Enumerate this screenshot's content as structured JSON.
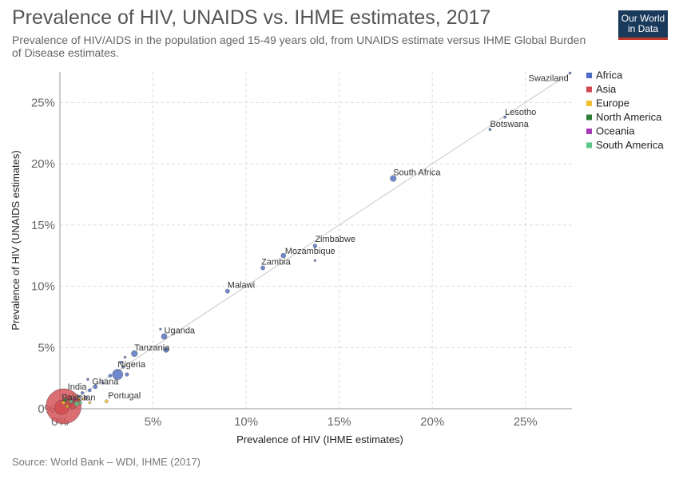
{
  "header": {
    "title": "Prevalence of HIV, UNAIDS vs. IHME estimates, 2017",
    "subtitle": "Prevalence of HIV/AIDS in the population aged 15-49 years old, from UNAIDS estimate versus IHME Global Burden of Disease estimates.",
    "logo_line1": "Our World",
    "logo_line2": "in Data"
  },
  "footer": {
    "source": "Source: World Bank – WDI, IHME (2017)"
  },
  "chart_data": {
    "type": "scatter",
    "title": "Prevalence of HIV, UNAIDS vs. IHME estimates, 2017",
    "xlabel": "Prevalence of HIV (IHME estimates)",
    "ylabel": "Prevalence of HIV (UNAIDS estimates)",
    "xlim": [
      0,
      27.5
    ],
    "ylim": [
      0,
      27.5
    ],
    "x_ticks": [
      0,
      5,
      10,
      15,
      20,
      25
    ],
    "y_ticks": [
      0,
      5,
      10,
      15,
      20,
      25
    ],
    "x_tick_labels": [
      "0%",
      "5%",
      "10%",
      "15%",
      "20%",
      "25%"
    ],
    "y_tick_labels": [
      "0%",
      "5%",
      "10%",
      "15%",
      "20%",
      "25%"
    ],
    "grid": true,
    "reference_line": "y = x",
    "legend_position": "right",
    "legend": [
      {
        "name": "Africa",
        "color": "#4c6bc2"
      },
      {
        "name": "Asia",
        "color": "#d24a4f"
      },
      {
        "name": "Europe",
        "color": "#f2c030"
      },
      {
        "name": "North America",
        "color": "#2f7d3a"
      },
      {
        "name": "Oceania",
        "color": "#a53ab5"
      },
      {
        "name": "South America",
        "color": "#5fc48a"
      }
    ],
    "points": [
      {
        "label": "Swaziland",
        "x": 27.4,
        "y": 27.4,
        "region": "Africa",
        "size": 1.5
      },
      {
        "label": "Lesotho",
        "x": 23.9,
        "y": 23.8,
        "region": "Africa",
        "size": 1.6
      },
      {
        "label": "Botswana",
        "x": 23.1,
        "y": 22.8,
        "region": "Africa",
        "size": 1.6
      },
      {
        "label": "South Africa",
        "x": 17.9,
        "y": 18.8,
        "region": "Africa",
        "size": 3.8
      },
      {
        "label": "Zimbabwe",
        "x": 13.7,
        "y": 13.3,
        "region": "Africa",
        "size": 2.4
      },
      {
        "label": "Mozambique",
        "x": 12.0,
        "y": 12.5,
        "region": "Africa",
        "size": 3.0
      },
      {
        "label": "",
        "x": 13.7,
        "y": 12.1,
        "region": "Africa",
        "size": 1.3
      },
      {
        "label": "Zambia",
        "x": 10.9,
        "y": 11.5,
        "region": "Africa",
        "size": 2.6
      },
      {
        "label": "Malawi",
        "x": 9.0,
        "y": 9.6,
        "region": "Africa",
        "size": 2.6
      },
      {
        "label": "",
        "x": 5.4,
        "y": 6.5,
        "region": "Africa",
        "size": 1.3
      },
      {
        "label": "Uganda",
        "x": 5.6,
        "y": 5.9,
        "region": "Africa",
        "size": 3.6
      },
      {
        "label": "",
        "x": 5.7,
        "y": 4.8,
        "region": "Africa",
        "size": 3.1
      },
      {
        "label": "Tanzania",
        "x": 4.0,
        "y": 4.5,
        "region": "Africa",
        "size": 3.8
      },
      {
        "label": "",
        "x": 3.5,
        "y": 4.2,
        "region": "Africa",
        "size": 1.4
      },
      {
        "label": "",
        "x": 3.3,
        "y": 3.8,
        "region": "Africa",
        "size": 1.5
      },
      {
        "label": "",
        "x": 3.4,
        "y": 3.4,
        "region": "Africa",
        "size": 1.6
      },
      {
        "label": "Nigeria",
        "x": 3.1,
        "y": 2.8,
        "region": "Africa",
        "size": 6.5
      },
      {
        "label": "",
        "x": 3.6,
        "y": 2.8,
        "region": "Africa",
        "size": 2.3
      },
      {
        "label": "",
        "x": 2.7,
        "y": 2.7,
        "region": "Africa",
        "size": 2.0
      },
      {
        "label": "Ghana",
        "x": 1.9,
        "y": 1.8,
        "region": "Africa",
        "size": 2.6
      },
      {
        "label": "",
        "x": 1.5,
        "y": 2.4,
        "region": "Africa",
        "size": 1.5
      },
      {
        "label": "",
        "x": 2.3,
        "y": 2.1,
        "region": "Africa",
        "size": 1.5
      },
      {
        "label": "",
        "x": 1.6,
        "y": 1.5,
        "region": "Africa",
        "size": 2.1
      },
      {
        "label": "",
        "x": 1.2,
        "y": 1.3,
        "region": "Africa",
        "size": 1.8
      },
      {
        "label": "",
        "x": 1.4,
        "y": 0.9,
        "region": "Africa",
        "size": 2.0
      },
      {
        "label": "",
        "x": 1.0,
        "y": 1.0,
        "region": "Africa",
        "size": 1.7
      },
      {
        "label": "Portugal",
        "x": 2.5,
        "y": 0.6,
        "region": "Europe",
        "size": 2.1
      },
      {
        "label": "",
        "x": 1.3,
        "y": 0.8,
        "region": "Europe",
        "size": 1.8
      },
      {
        "label": "",
        "x": 1.6,
        "y": 0.5,
        "region": "Europe",
        "size": 1.6
      },
      {
        "label": "",
        "x": 1.0,
        "y": 0.9,
        "region": "Europe",
        "size": 2.2
      },
      {
        "label": "India",
        "x": 0.2,
        "y": 0.2,
        "region": "Asia",
        "size": 22
      },
      {
        "label": "Pakistan",
        "x": 0.1,
        "y": 0.1,
        "region": "Asia",
        "size": 9
      },
      {
        "label": "",
        "x": 0.5,
        "y": 0.5,
        "region": "Asia",
        "size": 5.5
      },
      {
        "label": "",
        "x": 0.7,
        "y": 0.3,
        "region": "Asia",
        "size": 4.5
      },
      {
        "label": "",
        "x": 0.9,
        "y": 0.6,
        "region": "Asia",
        "size": 3.5
      },
      {
        "label": "",
        "x": 0.5,
        "y": 0.9,
        "region": "Asia",
        "size": 2.8
      },
      {
        "label": "",
        "x": 0.9,
        "y": 0.4,
        "region": "South America",
        "size": 3.2
      },
      {
        "label": "",
        "x": 0.6,
        "y": 0.6,
        "region": "South America",
        "size": 2.4
      },
      {
        "label": "",
        "x": 0.3,
        "y": 0.7,
        "region": "North America",
        "size": 2.2
      },
      {
        "label": "",
        "x": 0.8,
        "y": 0.8,
        "region": "Oceania",
        "size": 1.6
      },
      {
        "label": "",
        "x": 0.2,
        "y": 0.5,
        "region": "Europe",
        "size": 2.4
      },
      {
        "label": "",
        "x": 0.4,
        "y": 0.2,
        "region": "Europe",
        "size": 2.0
      },
      {
        "label": "",
        "x": 1.1,
        "y": 0.5,
        "region": "South America",
        "size": 2.0
      }
    ]
  }
}
